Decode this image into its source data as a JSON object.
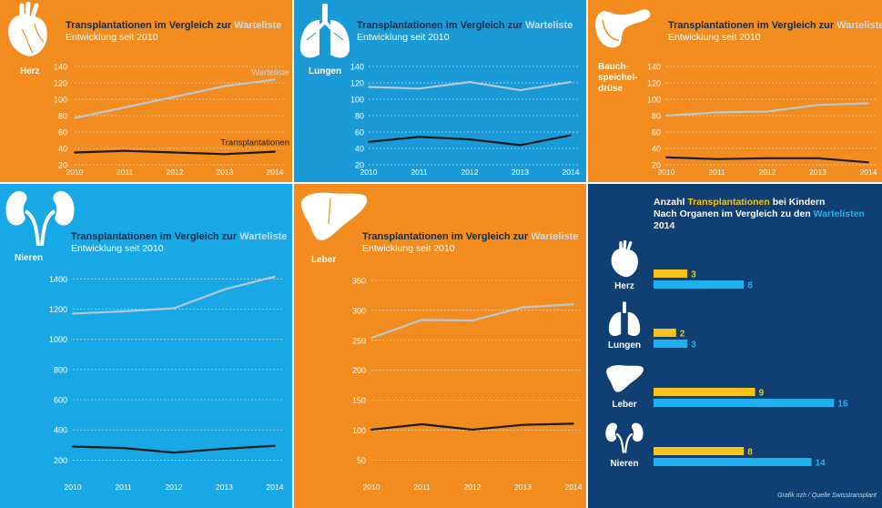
{
  "colors": {
    "orange": "#f28c1e",
    "blue": "#1a9ad6",
    "light_blue": "#19a8e6",
    "navy": "#0f3f73",
    "waitlist_line": "#b9c7d2",
    "transplant_line": "#1b1b1b",
    "bar_transplant": "#f7c21a",
    "bar_waitlist": "#1fb0f0"
  },
  "common": {
    "title_part1": "Transplantationen",
    "title_part2": " im Vergleich zur ",
    "title_part3": "Warteliste",
    "subtitle": "Entwicklung seit 2010"
  },
  "panels": [
    {
      "organ": "Herz",
      "icon": "heart-icon"
    },
    {
      "organ": "Lungen",
      "icon": "lungs-icon"
    },
    {
      "organ": "Bauch-\nspeichel-\ndrüse",
      "icon": "pancreas-icon"
    },
    {
      "organ": "Nieren",
      "icon": "kidneys-icon"
    },
    {
      "organ": "Leber",
      "icon": "liver-icon"
    }
  ],
  "chart_data": [
    {
      "type": "line",
      "organ": "Herz",
      "title": "Transplantationen im Vergleich zur Warteliste",
      "subtitle": "Entwicklung seit 2010",
      "x": [
        2010,
        2011,
        2012,
        2013,
        2014
      ],
      "x_ticks": [
        "2010",
        "2011",
        "2012",
        "2013",
        "2014"
      ],
      "y_ticks": [
        20,
        40,
        60,
        80,
        100,
        120,
        140
      ],
      "ylim": [
        10,
        140
      ],
      "series": [
        {
          "name": "Warteliste",
          "values": [
            77,
            90,
            103,
            116,
            124
          ]
        },
        {
          "name": "Transplantationen",
          "values": [
            35,
            37,
            35,
            33,
            36
          ]
        }
      ],
      "annotations": [
        "Warteliste",
        "Transplantationen"
      ]
    },
    {
      "type": "line",
      "organ": "Lungen",
      "title": "Transplantationen im Vergleich zur Warteliste",
      "subtitle": "Entwicklung seit 2010",
      "x": [
        2010,
        2011,
        2012,
        2013,
        2014
      ],
      "x_ticks": [
        "2010",
        "2011",
        "2012",
        "2013",
        "2014"
      ],
      "y_ticks": [
        20,
        40,
        60,
        80,
        100,
        120,
        140
      ],
      "ylim": [
        10,
        140
      ],
      "series": [
        {
          "name": "Warteliste",
          "values": [
            115,
            113,
            121,
            111,
            121
          ]
        },
        {
          "name": "Transplantationen",
          "values": [
            48,
            54,
            51,
            44,
            56
          ]
        }
      ]
    },
    {
      "type": "line",
      "organ": "Bauchspeicheldrüse",
      "title": "Transplantationen im Vergleich zur Warteliste",
      "subtitle": "Entwicklung seit 2010",
      "x": [
        2010,
        2011,
        2012,
        2013,
        2014
      ],
      "x_ticks": [
        "2010",
        "2011",
        "2012",
        "2013",
        "2014"
      ],
      "y_ticks": [
        20,
        40,
        60,
        80,
        100,
        120,
        140
      ],
      "ylim": [
        10,
        140
      ],
      "series": [
        {
          "name": "Warteliste",
          "values": [
            80,
            84,
            85,
            93,
            95
          ]
        },
        {
          "name": "Transplantationen",
          "values": [
            29,
            27,
            28,
            28,
            23
          ]
        }
      ]
    },
    {
      "type": "line",
      "organ": "Nieren",
      "title": "Transplantationen im Vergleich zur Warteliste",
      "subtitle": "Entwicklung seit 2010",
      "x": [
        2010,
        2011,
        2012,
        2013,
        2014
      ],
      "x_ticks": [
        "2010",
        "2011",
        "2012",
        "2013",
        "2014"
      ],
      "y_ticks": [
        200,
        400,
        600,
        800,
        1000,
        1200,
        1400
      ],
      "ylim": [
        100,
        1450
      ],
      "series": [
        {
          "name": "Warteliste",
          "values": [
            1170,
            1185,
            1205,
            1330,
            1415
          ]
        },
        {
          "name": "Transplantationen",
          "values": [
            290,
            280,
            250,
            275,
            295
          ]
        }
      ]
    },
    {
      "type": "line",
      "organ": "Leber",
      "title": "Transplantationen im Vergleich zur Warteliste",
      "subtitle": "Entwicklung seit 2010",
      "x": [
        2010,
        2011,
        2012,
        2013,
        2014
      ],
      "x_ticks": [
        "2010",
        "2011",
        "2012",
        "2013",
        "2014"
      ],
      "y_ticks": [
        50,
        100,
        150,
        200,
        250,
        300,
        350
      ],
      "ylim": [
        25,
        365
      ],
      "series": [
        {
          "name": "Warteliste",
          "values": [
            254,
            284,
            283,
            305,
            310
          ]
        },
        {
          "name": "Transplantationen",
          "values": [
            101,
            110,
            101,
            109,
            111
          ]
        }
      ]
    },
    {
      "type": "bar",
      "orientation": "horizontal",
      "title_line1_a": "Anzahl ",
      "title_line1_b": "Transplantationen",
      "title_line1_c": " bei Kindern",
      "title_line2_a": "Nach Organen im Vergleich zu den ",
      "title_line2_b": "Wartelisten",
      "title_line3": "2014",
      "categories": [
        "Herz",
        "Lungen",
        "Leber",
        "Nieren"
      ],
      "category_icons": [
        "heart-icon",
        "lungs-icon",
        "liver-icon",
        "kidneys-icon"
      ],
      "series": [
        {
          "name": "Transplantationen",
          "values": [
            3,
            2,
            9,
            8
          ]
        },
        {
          "name": "Wartelisten",
          "values": [
            8,
            3,
            16,
            14
          ]
        }
      ],
      "credit": "Grafik nzh / Quelle Swisstransplant"
    }
  ]
}
